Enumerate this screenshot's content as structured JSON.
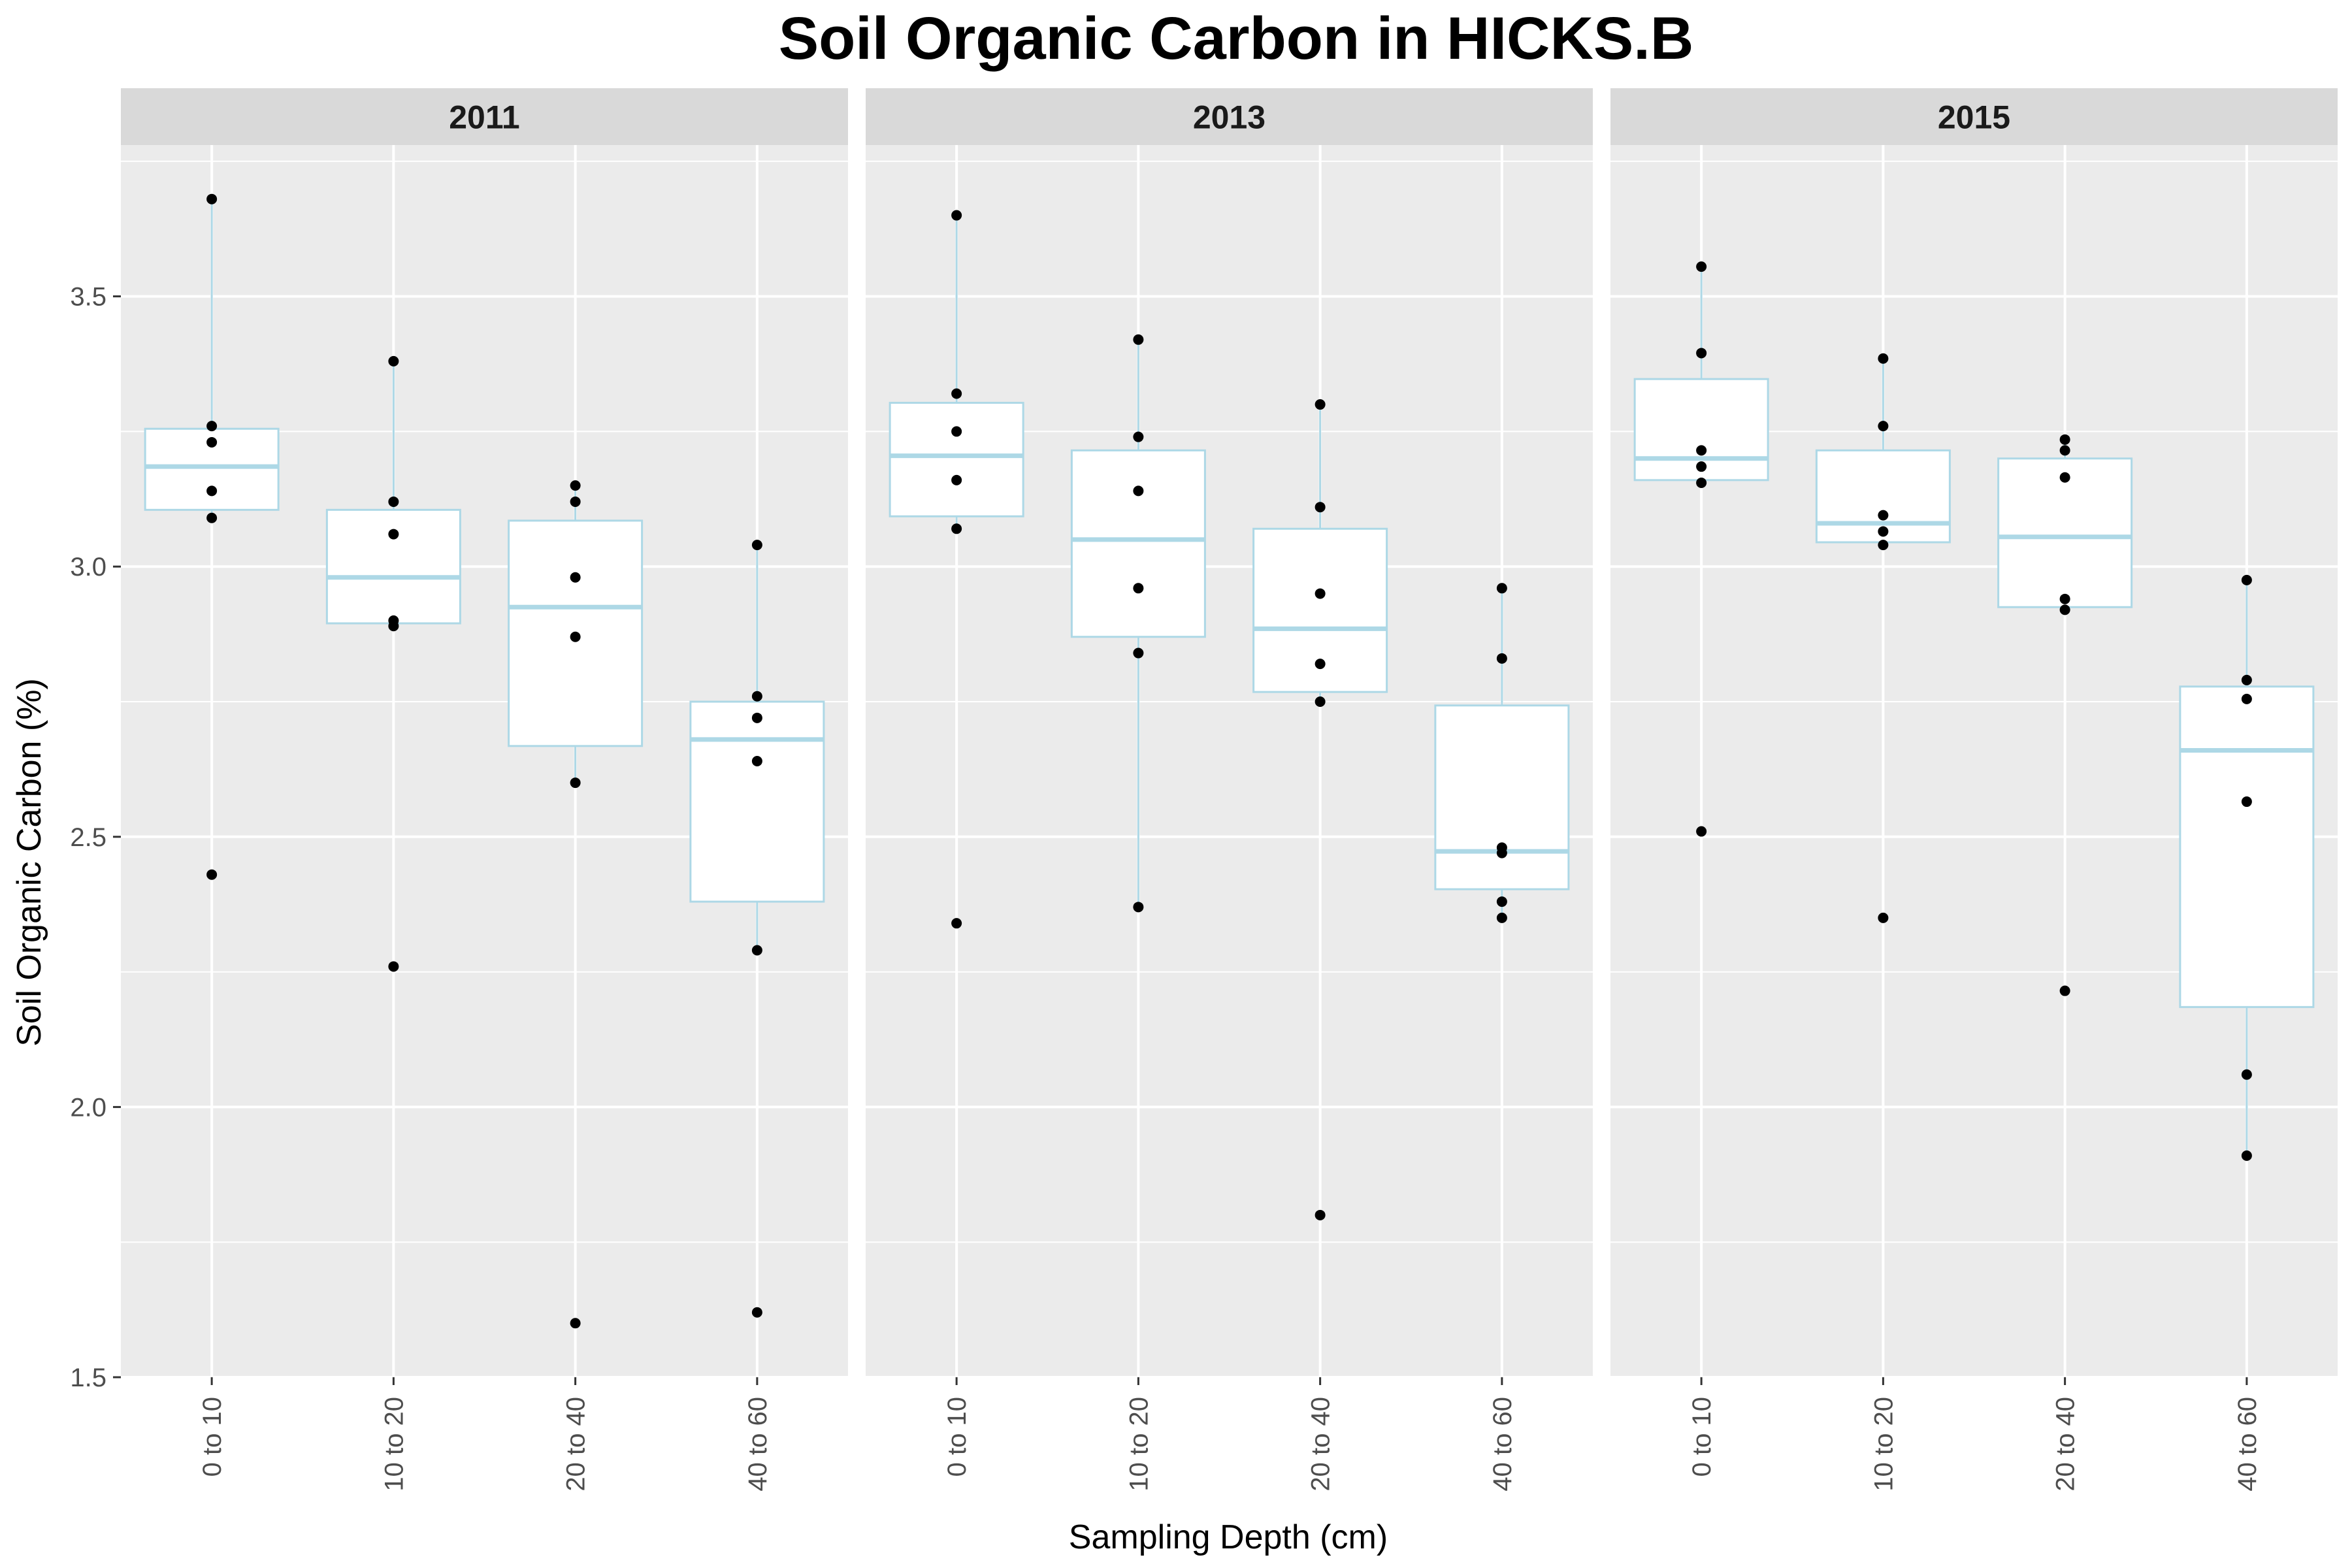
{
  "chart_data": {
    "type": "boxplot",
    "title": "Soil Organic Carbon in HICKS.B",
    "xlabel": "Sampling Depth (cm)",
    "ylabel": "Soil Organic Carbon (%)",
    "ylim": [
      1.5,
      3.78
    ],
    "yticks": [
      "1.5",
      "2.0",
      "2.5",
      "3.0",
      "3.5"
    ],
    "categories": [
      "0 to 10",
      "10 to 20",
      "20 to 40",
      "40 to 60"
    ],
    "grid": true,
    "colors": {
      "panel_bg": "#ebebeb",
      "strip_bg": "#d9d9d9",
      "grid": "#ffffff",
      "box_outline": "#add8e6",
      "box_fill": "#ffffff",
      "point": "#000000"
    },
    "panels": [
      {
        "label": "2011",
        "boxes": [
          {
            "category": "0 to 10",
            "q1": 3.105,
            "median": 3.185,
            "q3": 3.255,
            "whisker_low": 3.09,
            "whisker_high": 3.68,
            "points": [
              3.68,
              3.26,
              3.23,
              3.14,
              3.09,
              2.43
            ]
          },
          {
            "category": "10 to 20",
            "q1": 2.895,
            "median": 2.98,
            "q3": 3.105,
            "whisker_low": 2.89,
            "whisker_high": 3.38,
            "points": [
              3.38,
              3.12,
              3.06,
              2.9,
              2.89,
              2.26
            ]
          },
          {
            "category": "20 to 40",
            "q1": 2.668,
            "median": 2.925,
            "q3": 3.085,
            "whisker_low": 2.6,
            "whisker_high": 3.15,
            "points": [
              3.15,
              3.12,
              2.98,
              2.87,
              2.6,
              1.6
            ]
          },
          {
            "category": "40 to 60",
            "q1": 2.38,
            "median": 2.68,
            "q3": 2.75,
            "whisker_low": 2.29,
            "whisker_high": 3.04,
            "points": [
              3.04,
              2.76,
              2.72,
              2.64,
              2.29,
              1.62
            ]
          }
        ]
      },
      {
        "label": "2013",
        "boxes": [
          {
            "category": "0 to 10",
            "q1": 3.093,
            "median": 3.205,
            "q3": 3.303,
            "whisker_low": 3.07,
            "whisker_high": 3.65,
            "points": [
              3.65,
              3.32,
              3.25,
              3.16,
              3.07,
              2.34
            ]
          },
          {
            "category": "10 to 20",
            "q1": 2.87,
            "median": 3.05,
            "q3": 3.215,
            "whisker_low": 2.37,
            "whisker_high": 3.42,
            "points": [
              3.42,
              3.24,
              3.14,
              2.96,
              2.84,
              2.37
            ]
          },
          {
            "category": "20 to 40",
            "q1": 2.768,
            "median": 2.885,
            "q3": 3.07,
            "whisker_low": 2.75,
            "whisker_high": 3.3,
            "points": [
              3.3,
              3.11,
              2.95,
              2.82,
              2.75,
              1.8
            ]
          },
          {
            "category": "40 to 60",
            "q1": 2.403,
            "median": 2.473,
            "q3": 2.743,
            "whisker_low": 2.35,
            "whisker_high": 2.96,
            "points": [
              2.96,
              2.83,
              2.48,
              2.47,
              2.38,
              2.35
            ]
          }
        ]
      },
      {
        "label": "2015",
        "boxes": [
          {
            "category": "0 to 10",
            "q1": 3.16,
            "median": 3.2,
            "q3": 3.347,
            "whisker_low": 3.15,
            "whisker_high": 3.555,
            "points": [
              3.555,
              3.395,
              3.215,
              3.185,
              3.155,
              2.51
            ]
          },
          {
            "category": "10 to 20",
            "q1": 3.045,
            "median": 3.08,
            "q3": 3.215,
            "whisker_low": 3.04,
            "whisker_high": 3.385,
            "points": [
              3.385,
              3.26,
              3.095,
              3.065,
              3.04,
              2.35
            ]
          },
          {
            "category": "20 to 40",
            "q1": 2.925,
            "median": 3.055,
            "q3": 3.2,
            "whisker_low": 2.92,
            "whisker_high": 3.235,
            "points": [
              3.235,
              3.215,
              3.165,
              2.94,
              2.92,
              2.215
            ]
          },
          {
            "category": "40 to 60",
            "q1": 2.185,
            "median": 2.66,
            "q3": 2.778,
            "whisker_low": 1.91,
            "whisker_high": 2.975,
            "points": [
              2.975,
              2.79,
              2.755,
              2.565,
              2.06,
              1.91
            ]
          }
        ]
      }
    ]
  }
}
